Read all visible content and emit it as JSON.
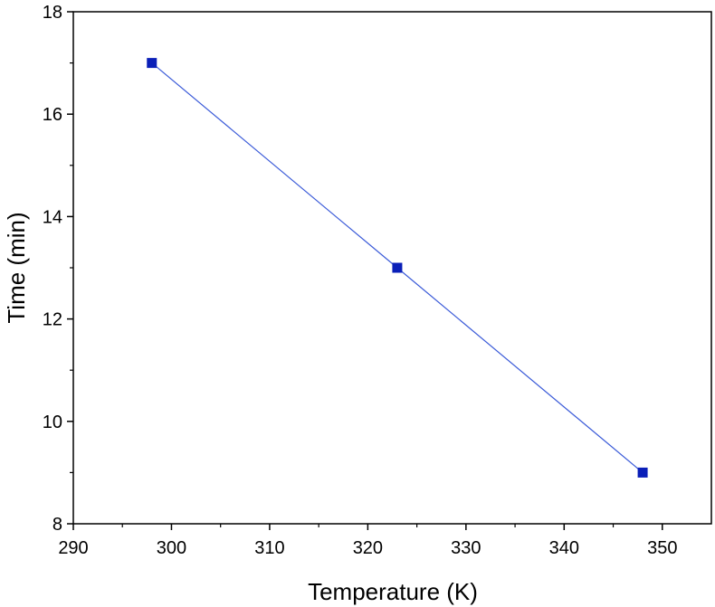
{
  "chart_data": {
    "type": "line",
    "title": "",
    "xlabel": "Temperature (K)",
    "ylabel": "Time (min)",
    "xlim": [
      290,
      355
    ],
    "ylim": [
      8,
      18
    ],
    "x_ticks": [
      290,
      300,
      310,
      320,
      330,
      340,
      350
    ],
    "y_ticks": [
      8,
      10,
      12,
      14,
      16,
      18
    ],
    "grid": false,
    "legend": "none",
    "series": [
      {
        "color": "#0a1fb8",
        "line_color": "#3a5ad8",
        "marker": "square",
        "points": [
          {
            "x": 298,
            "y": 17
          },
          {
            "x": 323,
            "y": 13
          },
          {
            "x": 348,
            "y": 9
          }
        ]
      }
    ]
  }
}
